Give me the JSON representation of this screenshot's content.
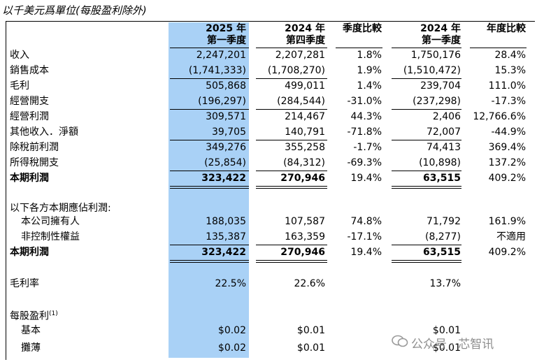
{
  "caption": "以千美元爲單位(每股盈利除外)",
  "headers": [
    {
      "line1": "2025 年",
      "line2": "第一季度"
    },
    {
      "line1": "2024 年",
      "line2": "第四季度"
    },
    {
      "line1": "季度比較",
      "line2": ""
    },
    {
      "line1": "2024 年",
      "line2": "第一季度"
    },
    {
      "line1": "年度比較",
      "line2": ""
    }
  ],
  "rows": [
    {
      "label": "收入",
      "v": [
        "2,247,201",
        "2,207,281",
        "1.8%",
        "1,750,176",
        "28.4%"
      ]
    },
    {
      "label": "銷售成本",
      "v": [
        "(1,741,333)",
        "(1,708,270)",
        "1.9%",
        "(1,510,472)",
        "15.3%"
      ]
    },
    {
      "label": "毛利",
      "v": [
        "505,868",
        "499,011",
        "1.4%",
        "239,704",
        "111.0%"
      ]
    },
    {
      "label": "經營開支",
      "v": [
        "(196,297)",
        "(284,544)",
        "-31.0%",
        "(237,298)",
        "-17.3%"
      ]
    },
    {
      "label": "經營利潤",
      "v": [
        "309,571",
        "214,467",
        "44.3%",
        "2,406",
        "12,766.6%"
      ]
    },
    {
      "label": "其他收入．淨額",
      "v": [
        "39,705",
        "140,791",
        "-71.8%",
        "72,007",
        "-44.9%"
      ]
    },
    {
      "label": "除稅前利潤",
      "v": [
        "349,276",
        "355,258",
        "-1.7%",
        "74,413",
        "369.4%"
      ]
    },
    {
      "label": "所得稅開支",
      "v": [
        "(25,854)",
        "(84,312)",
        "-69.3%",
        "(10,898)",
        "137.2%"
      ]
    },
    {
      "label": "本期利潤",
      "v": [
        "323,422",
        "270,946",
        "19.4%",
        "63,515",
        "409.2%"
      ]
    },
    {
      "label": "以下各方本期應佔利潤:",
      "v": [
        "",
        "",
        "",
        "",
        ""
      ]
    },
    {
      "label": "本公司擁有人",
      "v": [
        "188,035",
        "107,587",
        "74.8%",
        "71,792",
        "161.9%"
      ]
    },
    {
      "label": "非控制性權益",
      "v": [
        "135,387",
        "163,359",
        "-17.1%",
        "(8,277)",
        "不適用"
      ]
    },
    {
      "label": "本期利潤",
      "v": [
        "323,422",
        "270,946",
        "19.4%",
        "63,515",
        "409.2%"
      ]
    },
    {
      "label": "毛利率",
      "v": [
        "22.5%",
        "22.6%",
        "",
        "13.7%",
        ""
      ]
    },
    {
      "label": "每股盈利",
      "sup": "(1)",
      "v": [
        "",
        "",
        "",
        "",
        ""
      ]
    },
    {
      "label": "基本",
      "v": [
        "$0.02",
        "$0.01",
        "",
        "$0.01",
        ""
      ]
    },
    {
      "label": "攤薄",
      "v": [
        "$0.02",
        "$0.01",
        "",
        "$0.01",
        ""
      ]
    }
  ],
  "watermark": "公众号 · 芯智讯"
}
